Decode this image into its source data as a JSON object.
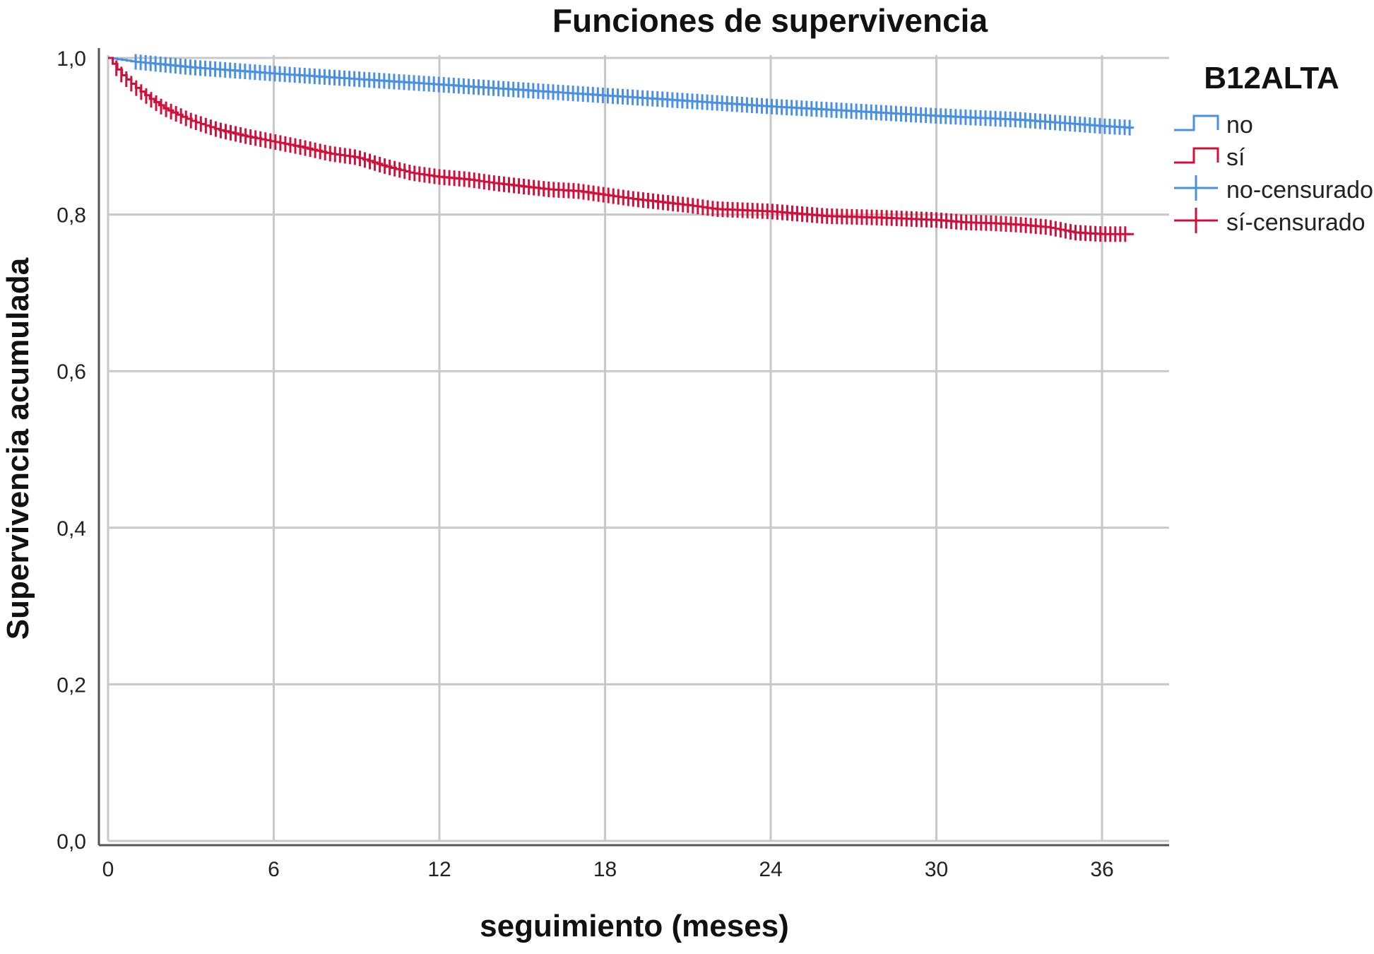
{
  "chart_data": {
    "type": "line",
    "title": "Funciones de supervivencia",
    "xlabel": "seguimiento (meses)",
    "ylabel": "Supervivencia acumulada",
    "xlim": [
      0,
      37
    ],
    "ylim": [
      0,
      1.0
    ],
    "x_ticks": [
      0,
      6,
      12,
      18,
      24,
      30,
      36
    ],
    "x_tick_labels": [
      "0",
      "6",
      "12",
      "18",
      "24",
      "30",
      "36"
    ],
    "y_ticks": [
      0,
      0.2,
      0.4,
      0.6,
      0.8,
      1.0
    ],
    "y_tick_labels": [
      "0,0",
      "0,2",
      "0,4",
      "0,6",
      "0,8",
      "1,0"
    ],
    "grid": true,
    "legend": {
      "title": "B12ALTA",
      "position": "right",
      "entries": [
        {
          "label": "no",
          "kind": "line",
          "series": 0
        },
        {
          "label": "sí",
          "kind": "line",
          "series": 1
        },
        {
          "label": "no-censurado",
          "kind": "censor",
          "series": 0
        },
        {
          "label": "sí-censurado",
          "kind": "censor",
          "series": 1
        }
      ]
    },
    "series": [
      {
        "name": "no",
        "color": "#4a90e2",
        "x": [
          0,
          1,
          3,
          6,
          9,
          12,
          15,
          18,
          21,
          24,
          27,
          30,
          33,
          36,
          37
        ],
        "y": [
          1.0,
          0.995,
          0.988,
          0.98,
          0.973,
          0.966,
          0.959,
          0.952,
          0.945,
          0.938,
          0.932,
          0.926,
          0.921,
          0.913,
          0.911
        ],
        "censor_from": 1.0,
        "censor_to": 37.0
      },
      {
        "name": "sí",
        "color": "#d0103a",
        "x": [
          0,
          0.5,
          1,
          1.5,
          2,
          3,
          4,
          5,
          6,
          7,
          8,
          9,
          10,
          11,
          12,
          13,
          14,
          15,
          16,
          17,
          18,
          19,
          20,
          21,
          22,
          24,
          25,
          26,
          27,
          28,
          30,
          31,
          32,
          33,
          34,
          35,
          36,
          37
        ],
        "y": [
          1.0,
          0.978,
          0.962,
          0.948,
          0.936,
          0.92,
          0.908,
          0.9,
          0.893,
          0.886,
          0.878,
          0.873,
          0.862,
          0.853,
          0.848,
          0.845,
          0.84,
          0.836,
          0.832,
          0.83,
          0.825,
          0.82,
          0.816,
          0.812,
          0.807,
          0.804,
          0.801,
          0.798,
          0.797,
          0.796,
          0.793,
          0.79,
          0.789,
          0.787,
          0.784,
          0.777,
          0.775,
          0.775
        ],
        "censor_from": 0.3,
        "censor_to": 37.0
      }
    ]
  }
}
